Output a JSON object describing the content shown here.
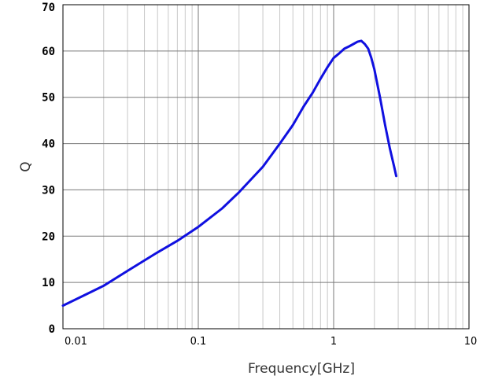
{
  "chart_data": {
    "type": "line",
    "title": "",
    "xlabel": "Frequency[GHz]",
    "ylabel": "Q",
    "x_scale": "log",
    "xlim": [
      0.01,
      10
    ],
    "ylim": [
      0,
      70
    ],
    "x_tick_labels": [
      "0.01",
      "0.1",
      "1",
      "10"
    ],
    "y_tick_labels": [
      "0",
      "10",
      "20",
      "30",
      "40",
      "50",
      "60",
      "70"
    ],
    "grid": true,
    "legend": "none",
    "line_color": "#1010e0",
    "series": [
      {
        "x": [
          0.01,
          0.015,
          0.02,
          0.03,
          0.05,
          0.07,
          0.1,
          0.15,
          0.2,
          0.3,
          0.4,
          0.5,
          0.6,
          0.7,
          0.8,
          0.9,
          1.0,
          1.1,
          1.2,
          1.3,
          1.4,
          1.5,
          1.6,
          1.7,
          1.8,
          1.9,
          2.0,
          2.2,
          2.4,
          2.6,
          2.8,
          2.9
        ],
        "y": [
          5,
          7.5,
          9.3,
          12.5,
          16.5,
          19,
          22,
          26,
          29.5,
          35,
          40,
          44,
          48,
          51,
          54,
          56.5,
          58.5,
          59.5,
          60.5,
          61,
          61.5,
          62,
          62.2,
          61.5,
          60.5,
          58.5,
          56,
          50,
          44,
          39,
          35,
          33
        ]
      }
    ]
  }
}
